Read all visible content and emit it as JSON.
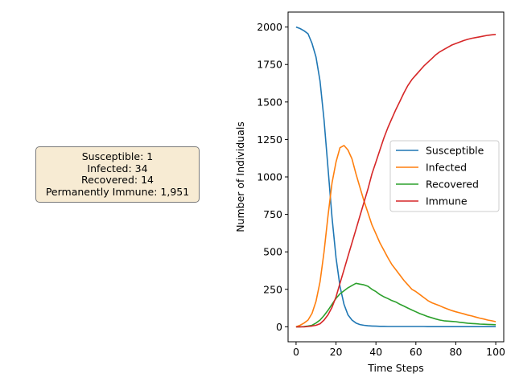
{
  "summary": {
    "susceptible": "Susceptible: 1",
    "infected": "Infected: 34",
    "recovered": "Recovered: 14",
    "immune": "Permanently Immune: 1,951"
  },
  "chart_data": {
    "type": "line",
    "xlabel": "Time Steps",
    "ylabel": "Number of Individuals",
    "xlim": [
      -4,
      104
    ],
    "ylim": [
      -100,
      2100
    ],
    "xticks": [
      0,
      20,
      40,
      60,
      80,
      100
    ],
    "yticks": [
      0,
      250,
      500,
      750,
      1000,
      1250,
      1500,
      1750,
      2000
    ],
    "grid": false,
    "legend_placement": "center-right",
    "x": [
      0,
      2,
      4,
      6,
      8,
      10,
      12,
      14,
      16,
      18,
      20,
      22,
      24,
      26,
      28,
      30,
      32,
      34,
      36,
      38,
      40,
      42,
      44,
      46,
      48,
      50,
      52,
      54,
      56,
      58,
      60,
      62,
      64,
      66,
      68,
      70,
      72,
      74,
      76,
      78,
      80,
      82,
      84,
      86,
      88,
      90,
      92,
      94,
      96,
      98,
      100
    ],
    "series": [
      {
        "name": "Susceptible",
        "color": "#1f77b4",
        "values": [
          2000,
          1990,
          1975,
          1955,
          1890,
          1800,
          1640,
          1380,
          1060,
          730,
          460,
          270,
          150,
          80,
          45,
          25,
          15,
          10,
          7,
          5,
          4,
          3,
          3,
          2,
          2,
          2,
          2,
          2,
          2,
          2,
          2,
          2,
          2,
          1,
          1,
          1,
          1,
          1,
          1,
          1,
          1,
          1,
          1,
          1,
          1,
          1,
          1,
          1,
          1,
          1,
          1
        ]
      },
      {
        "name": "Infected",
        "color": "#ff7f0e",
        "values": [
          0,
          10,
          25,
          45,
          90,
          170,
          300,
          500,
          740,
          960,
          1100,
          1195,
          1210,
          1180,
          1120,
          1020,
          930,
          840,
          760,
          680,
          620,
          560,
          510,
          460,
          415,
          380,
          345,
          310,
          280,
          250,
          235,
          215,
          195,
          175,
          160,
          150,
          140,
          128,
          118,
          108,
          100,
          93,
          86,
          78,
          72,
          65,
          58,
          52,
          45,
          40,
          34
        ]
      },
      {
        "name": "Recovered",
        "color": "#2ca02c",
        "values": [
          0,
          0,
          2,
          5,
          10,
          25,
          45,
          75,
          110,
          150,
          190,
          220,
          240,
          260,
          275,
          290,
          285,
          280,
          270,
          250,
          235,
          215,
          200,
          188,
          175,
          165,
          150,
          138,
          125,
          112,
          100,
          88,
          78,
          68,
          60,
          52,
          45,
          40,
          38,
          36,
          34,
          30,
          27,
          24,
          22,
          20,
          18,
          17,
          16,
          15,
          14
        ]
      },
      {
        "name": "Immune",
        "color": "#d62728",
        "values": [
          0,
          0,
          0,
          2,
          5,
          10,
          20,
          45,
          80,
          130,
          200,
          290,
          380,
          470,
          560,
          650,
          740,
          830,
          920,
          1020,
          1100,
          1180,
          1260,
          1330,
          1390,
          1450,
          1505,
          1560,
          1610,
          1650,
          1680,
          1710,
          1740,
          1765,
          1790,
          1815,
          1835,
          1850,
          1865,
          1880,
          1890,
          1900,
          1910,
          1918,
          1925,
          1930,
          1935,
          1940,
          1945,
          1948,
          1951
        ]
      }
    ]
  }
}
